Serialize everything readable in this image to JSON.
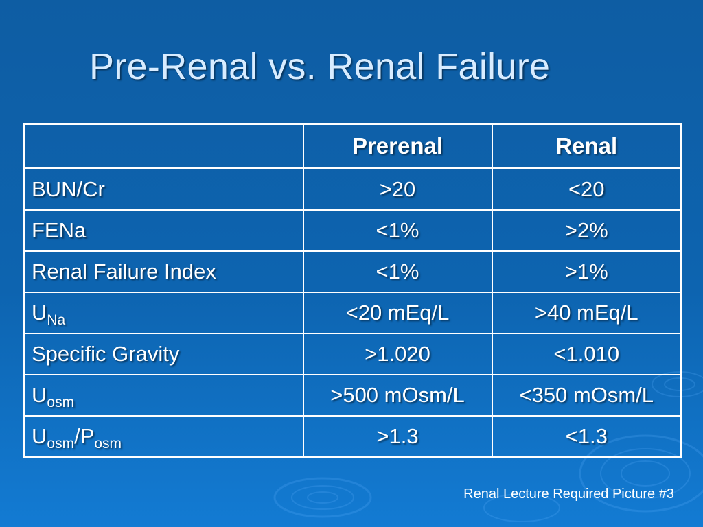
{
  "slide": {
    "title": "Pre-Renal vs. Renal Failure",
    "footer": "Renal Lecture Required Picture #3",
    "background_color": "#0d64b0",
    "title_color": "#d8ecff"
  },
  "table": {
    "headers": {
      "blank": "",
      "prerenal": "Prerenal",
      "renal": "Renal"
    },
    "rows": [
      {
        "label": "BUN/Cr",
        "prerenal": ">20",
        "renal": "<20"
      },
      {
        "label": "FENa",
        "prerenal": "<1%",
        "renal": ">2%"
      },
      {
        "label": "Renal Failure Index",
        "prerenal": "<1%",
        "renal": ">1%"
      },
      {
        "label_main": "U",
        "label_sub": "Na",
        "prerenal": "<20 mEq/L",
        "renal": ">40 mEq/L"
      },
      {
        "label": "Specific Gravity",
        "prerenal": ">1.020",
        "renal": "<1.010"
      },
      {
        "label_main": "U",
        "label_sub": "osm",
        "prerenal": ">500 mOsm/L",
        "renal": "<350 mOsm/L"
      },
      {
        "label_main": "U",
        "label_sub": "osm",
        "label_sep": "/P",
        "label_sub2": "osm",
        "prerenal": ">1.3",
        "renal": "<1.3"
      }
    ]
  }
}
